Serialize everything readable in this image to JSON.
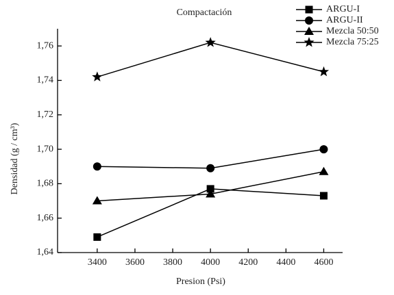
{
  "chart_data": {
    "type": "line",
    "title": "Compactación",
    "x_label": "Presion (Psi)",
    "y_label": "Densidad (g / cm³)",
    "x": [
      3400,
      4000,
      4600
    ],
    "series": [
      {
        "name": "ARGU-I",
        "color": "#000000",
        "marker": "square",
        "values": [
          1.649,
          1.677,
          1.673
        ]
      },
      {
        "name": "ARGU-II",
        "color": "#000000",
        "marker": "circle",
        "values": [
          1.69,
          1.689,
          1.7
        ]
      },
      {
        "name": "Mezcla 50:50",
        "color": "#000000",
        "marker": "triangle",
        "values": [
          1.67,
          1.674,
          1.687
        ]
      },
      {
        "name": "Mezcla 75:25",
        "color": "#000000",
        "marker": "star",
        "values": [
          1.742,
          1.762,
          1.745
        ]
      }
    ],
    "xlim": [
      3190,
      4700
    ],
    "xticks": [
      3400,
      3600,
      3800,
      4000,
      4200,
      4400,
      4600
    ],
    "ylim": [
      1.64,
      1.77
    ],
    "yticks": [
      {
        "value": 1.64,
        "label": "1,64"
      },
      {
        "value": 1.66,
        "label": "1,66"
      },
      {
        "value": 1.68,
        "label": "1,68"
      },
      {
        "value": 1.7,
        "label": "1,70"
      },
      {
        "value": 1.72,
        "label": "1,72"
      },
      {
        "value": 1.74,
        "label": "1,74"
      },
      {
        "value": 1.76,
        "label": "1,76"
      }
    ],
    "grid": false,
    "legend": "upper right"
  }
}
